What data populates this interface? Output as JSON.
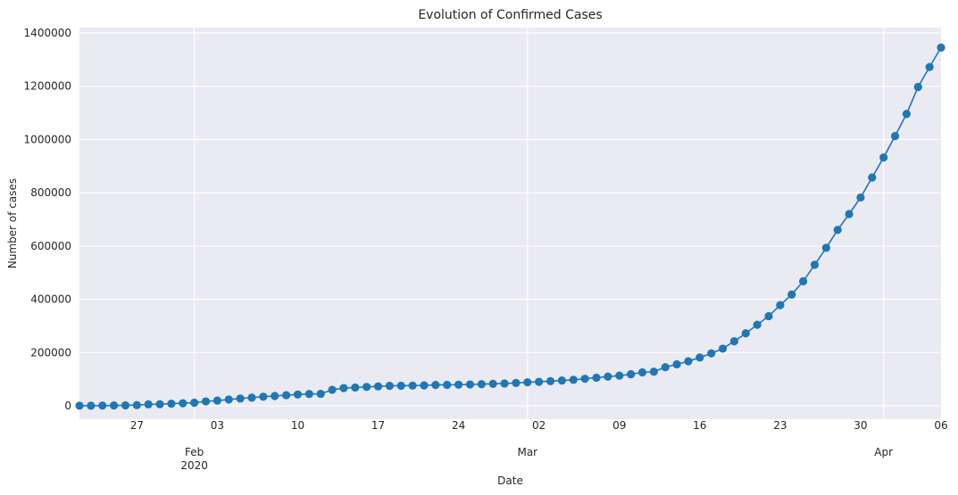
{
  "chart_data": {
    "type": "line",
    "title": "Evolution of Confirmed Cases",
    "xlabel": "Date",
    "ylabel": "Number of cases",
    "x_start": "2020-01-22",
    "x_end": "2020-04-06",
    "ylim": [
      -50000,
      1420000
    ],
    "yticks": [
      0,
      200000,
      400000,
      600000,
      800000,
      1000000,
      1200000,
      1400000
    ],
    "ytick_labels": [
      "0",
      "200000",
      "400000",
      "600000",
      "800000",
      "1000000",
      "1200000",
      "1400000"
    ],
    "xticks_minor": [
      {
        "date": "2020-01-27",
        "label": "27"
      },
      {
        "date": "2020-02-03",
        "label": "03"
      },
      {
        "date": "2020-02-10",
        "label": "10"
      },
      {
        "date": "2020-02-17",
        "label": "17"
      },
      {
        "date": "2020-02-24",
        "label": "24"
      },
      {
        "date": "2020-03-02",
        "label": "02"
      },
      {
        "date": "2020-03-09",
        "label": "09"
      },
      {
        "date": "2020-03-16",
        "label": "16"
      },
      {
        "date": "2020-03-23",
        "label": "23"
      },
      {
        "date": "2020-03-30",
        "label": "30"
      },
      {
        "date": "2020-04-06",
        "label": "06"
      }
    ],
    "xticks_major": [
      {
        "date": "2020-02-01",
        "label": "Feb",
        "sublabel": "2020"
      },
      {
        "date": "2020-03-01",
        "label": "Mar",
        "sublabel": ""
      },
      {
        "date": "2020-04-01",
        "label": "Apr",
        "sublabel": ""
      }
    ],
    "grid": true,
    "colors": {
      "background": "#EAEAF2",
      "series": "#1F77B4",
      "grid": "#FFFFFF"
    },
    "series": [
      {
        "values": [
          555,
          654,
          941,
          1434,
          2118,
          2927,
          5578,
          6166,
          8234,
          9927,
          12038,
          16787,
          19881,
          23892,
          27635,
          30794,
          34391,
          37120,
          40150,
          42762,
          44802,
          45221,
          60368,
          66885,
          69030,
          71224,
          73258,
          75136,
          75639,
          76197,
          76819,
          78572,
          78958,
          79561,
          80406,
          81388,
          82746,
          84112,
          86011,
          88369,
          90306,
          92840,
          95120,
          97886,
          101801,
          105847,
          109821,
          113590,
          118620,
          125875,
          128352,
          145205,
          156101,
          167454,
          181574,
          197102,
          214821,
          242570,
          272208,
          304507,
          336953,
          378231,
          418041,
          467653,
          529591,
          593291,
          660706,
          720117,
          782365,
          857487,
          932605,
          1013157,
          1095917,
          1197405,
          1272115,
          1345048
        ]
      }
    ]
  }
}
